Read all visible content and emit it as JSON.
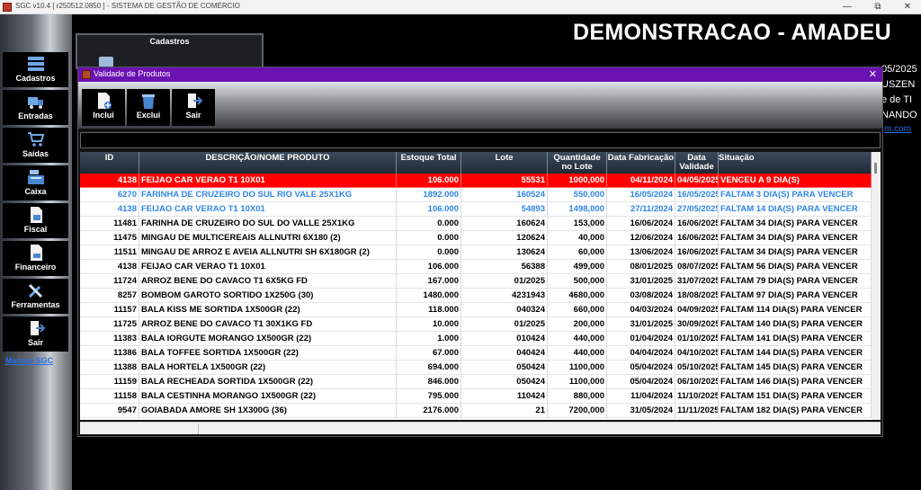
{
  "window": {
    "title": "SGC v10.4 [ r250512.0850 ] - SISTEMA DE GESTÃO DE COMÉRCIO",
    "min": "—",
    "restore": "⧉",
    "close": "✕"
  },
  "sidebar": {
    "items": [
      {
        "label": "Cadastros",
        "icon": "registry-icon"
      },
      {
        "label": "Entradas",
        "icon": "truck-icon"
      },
      {
        "label": "Saídas",
        "icon": "cart-icon"
      },
      {
        "label": "Caixa",
        "icon": "cash-register-icon"
      },
      {
        "label": "Fiscal",
        "icon": "document-icon"
      },
      {
        "label": "Financeiro",
        "icon": "finance-document-icon"
      },
      {
        "label": "Ferramentas",
        "icon": "tools-icon"
      },
      {
        "label": "Sair",
        "icon": "exit-icon"
      }
    ],
    "manual_link": "Manual SGC"
  },
  "background": {
    "cadastros_panel_title": "Cadastros",
    "company_title": "DEMONSTRACAO - AMADEU",
    "fragments": [
      "05/2025",
      "USZEN",
      "e de TI",
      "NANDO",
      "m.com"
    ]
  },
  "modal": {
    "title": "Validade de Produtos",
    "close": "✕",
    "toolbar": {
      "incluir": "Inclui",
      "excluir": "Exclui",
      "sair": "Sair"
    }
  },
  "colors": {
    "expired_bg": "#ff0000",
    "warning_text": "#2f86e6",
    "title_bar": "#6b12b3"
  },
  "table": {
    "columns": [
      {
        "key": "id",
        "label": "ID"
      },
      {
        "key": "desc",
        "label": "DESCRIÇÃO/NOME PRODUTO"
      },
      {
        "key": "estoque",
        "label": "Estoque Total"
      },
      {
        "key": "lote",
        "label": "Lote"
      },
      {
        "key": "qtd",
        "label": "Quantidade no Lote"
      },
      {
        "key": "fab",
        "label": "Data Fabricação"
      },
      {
        "key": "val",
        "label": "Data Validade"
      },
      {
        "key": "sit",
        "label": "Situação"
      }
    ],
    "rows": [
      {
        "id": "4138",
        "desc": "FEIJAO CAR VERAO T1 10X01",
        "estoque": "106.000",
        "lote": "55531",
        "qtd": "1000,000",
        "fab": "04/11/2024",
        "val": "04/05/2025",
        "sit": "VENCEU A 9 DIA(S)",
        "status": "expired"
      },
      {
        "id": "6270",
        "desc": "FARINHA DE CRUZEIRO DO SUL RIO VALE 25X1KG",
        "estoque": "1892.000",
        "lote": "160524",
        "qtd": "550,000",
        "fab": "16/05/2024",
        "val": "16/05/2025",
        "sit": "FALTAM 3 DIA(S) PARA VENCER",
        "status": "warning"
      },
      {
        "id": "4138",
        "desc": "FEIJAO CAR VERAO T1 10X01",
        "estoque": "106.000",
        "lote": "54893",
        "qtd": "1498,000",
        "fab": "27/11/2024",
        "val": "27/05/2025",
        "sit": "FALTAM 14 DIA(S) PARA VENCER",
        "status": "warning"
      },
      {
        "id": "11481",
        "desc": "FARINHA DE CRUZEIRO DO SUL DO VALLE  25X1KG",
        "estoque": "0.000",
        "lote": "160624",
        "qtd": "153,000",
        "fab": "16/06/2024",
        "val": "16/06/2025",
        "sit": "FALTAM 34 DIA(S) PARA VENCER",
        "status": "normal"
      },
      {
        "id": "11475",
        "desc": "MINGAU DE MULTICEREAIS ALLNUTRI 6X180 (2)",
        "estoque": "0.000",
        "lote": "120624",
        "qtd": "40,000",
        "fab": "12/06/2024",
        "val": "16/06/2025",
        "sit": "FALTAM 34 DIA(S) PARA VENCER",
        "status": "normal"
      },
      {
        "id": "11511",
        "desc": "MINGAU DE ARROZ E AVEIA ALLNUTRI SH 6X180GR (2)",
        "estoque": "0.000",
        "lote": "130624",
        "qtd": "60,000",
        "fab": "13/06/2024",
        "val": "16/06/2025",
        "sit": "FALTAM 34 DIA(S) PARA VENCER",
        "status": "normal"
      },
      {
        "id": "4138",
        "desc": "FEIJAO CAR VERAO T1 10X01",
        "estoque": "106.000",
        "lote": "56388",
        "qtd": "499,000",
        "fab": "08/01/2025",
        "val": "08/07/2025",
        "sit": "FALTAM 56 DIA(S) PARA VENCER",
        "status": "normal"
      },
      {
        "id": "11724",
        "desc": "ARROZ BENE DO CAVACO T1 6X5KG FD",
        "estoque": "167.000",
        "lote": "01/2025",
        "qtd": "500,000",
        "fab": "31/01/2025",
        "val": "31/07/2025",
        "sit": "FALTAM 79 DIA(S) PARA VENCER",
        "status": "normal"
      },
      {
        "id": "8257",
        "desc": "BOMBOM GAROTO SORTIDO 1X250G (30)",
        "estoque": "1480.000",
        "lote": "4231943",
        "qtd": "4680,000",
        "fab": "03/08/2024",
        "val": "18/08/2025",
        "sit": "FALTAM 97 DIA(S) PARA VENCER",
        "status": "normal"
      },
      {
        "id": "11157",
        "desc": "BALA KISS ME SORTIDA 1X500GR (22)",
        "estoque": "118.000",
        "lote": "040324",
        "qtd": "660,000",
        "fab": "04/03/2024",
        "val": "04/09/2025",
        "sit": "FALTAM 114 DIA(S) PARA VENCER",
        "status": "normal"
      },
      {
        "id": "11725",
        "desc": "ARROZ BENE DO CAVACO T1 30X1KG FD",
        "estoque": "10.000",
        "lote": "01/2025",
        "qtd": "200,000",
        "fab": "31/01/2025",
        "val": "30/09/2025",
        "sit": "FALTAM 140 DIA(S) PARA VENCER",
        "status": "normal"
      },
      {
        "id": "11383",
        "desc": "BALA IORGUTE MORANGO  1X500GR (22)",
        "estoque": "1.000",
        "lote": "010424",
        "qtd": "440,000",
        "fab": "01/04/2024",
        "val": "01/10/2025",
        "sit": "FALTAM 141 DIA(S) PARA VENCER",
        "status": "normal"
      },
      {
        "id": "11386",
        "desc": "BALA TOFFEE SORTIDA 1X500GR (22)",
        "estoque": "67.000",
        "lote": "040424",
        "qtd": "440,000",
        "fab": "04/04/2024",
        "val": "04/10/2025",
        "sit": "FALTAM 144 DIA(S) PARA VENCER",
        "status": "normal"
      },
      {
        "id": "11388",
        "desc": "BALA HORTELA 1X500GR (22)",
        "estoque": "694.000",
        "lote": "050424",
        "qtd": "1100,000",
        "fab": "05/04/2024",
        "val": "05/10/2025",
        "sit": "FALTAM 145 DIA(S) PARA VENCER",
        "status": "normal"
      },
      {
        "id": "11159",
        "desc": "BALA RECHEADA SORTIDA 1X500GR (22)",
        "estoque": "846.000",
        "lote": "050424",
        "qtd": "1100,000",
        "fab": "05/04/2024",
        "val": "06/10/2025",
        "sit": "FALTAM 146 DIA(S) PARA VENCER",
        "status": "normal"
      },
      {
        "id": "11158",
        "desc": "BALA CESTINHA MORANGO 1X500GR (22)",
        "estoque": "795.000",
        "lote": "110424",
        "qtd": "880,000",
        "fab": "11/04/2024",
        "val": "11/10/2025",
        "sit": "FALTAM 151 DIA(S) PARA VENCER",
        "status": "normal"
      },
      {
        "id": "9547",
        "desc": "GOIABADA AMORE SH 1X300G  (36)",
        "estoque": "2176.000",
        "lote": "21",
        "qtd": "7200,000",
        "fab": "31/05/2024",
        "val": "11/11/2025",
        "sit": "FALTAM 182 DIA(S) PARA VENCER",
        "status": "normal"
      }
    ]
  }
}
